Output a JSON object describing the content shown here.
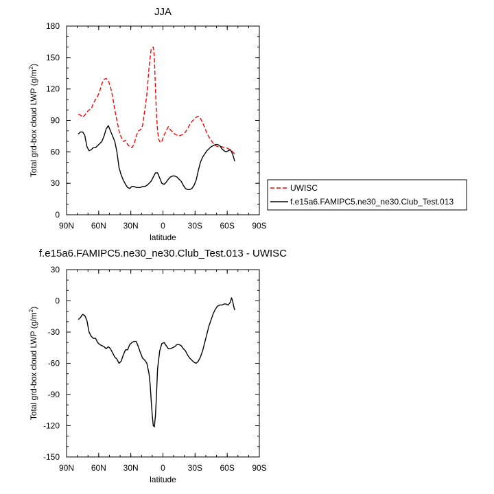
{
  "chart_data": [
    {
      "type": "line",
      "title": "JJA",
      "xlabel": "latitude",
      "ylabel": "Total grd-box cloud LWP (g/m²)",
      "ylabel_main": "Total grd-box cloud LWP (g/m",
      "ylabel_sup": "2",
      "ylabel_tail": ")",
      "xlim": [
        90,
        -90
      ],
      "ylim": [
        0,
        180
      ],
      "xticks": [
        90,
        60,
        30,
        0,
        -30,
        -60,
        -90
      ],
      "xtick_labels": [
        "90N",
        "60N",
        "30N",
        "0",
        "30S",
        "60S",
        "90S"
      ],
      "yticks": [
        0,
        30,
        60,
        90,
        120,
        150,
        180
      ],
      "ytick_labels": [
        "0",
        "30",
        "60",
        "90",
        "120",
        "150",
        "180"
      ],
      "legend_position": "right",
      "series": [
        {
          "name": "UWISC",
          "color": "#ff0000",
          "dash": "dashed",
          "x": [
            79,
            77,
            75,
            73,
            71,
            69,
            67,
            65,
            63,
            61,
            59,
            57,
            55,
            53,
            51,
            49,
            47,
            45,
            43,
            41,
            39,
            37,
            35,
            33,
            31,
            29,
            27,
            25,
            23,
            21,
            19,
            17,
            15,
            13,
            11,
            9,
            8,
            7,
            6,
            5,
            4,
            3,
            2,
            1,
            0,
            -1,
            -3,
            -5,
            -7,
            -9,
            -11,
            -13,
            -15,
            -17,
            -19,
            -21,
            -23,
            -25,
            -27,
            -29,
            -31,
            -33,
            -35,
            -37,
            -39,
            -41,
            -43,
            -45,
            -47,
            -49,
            -51,
            -53,
            -55,
            -57,
            -59,
            -61,
            -63,
            -65,
            -67
          ],
          "values": [
            96,
            95,
            93,
            95,
            98,
            100,
            101,
            106,
            110,
            113,
            118,
            125,
            129,
            130,
            128,
            122,
            113,
            100,
            90,
            80,
            74,
            70,
            71,
            67,
            65,
            64,
            67,
            75,
            80,
            81,
            85,
            100,
            115,
            140,
            158,
            160,
            150,
            120,
            95,
            80,
            72,
            70,
            69,
            70,
            73,
            76,
            80,
            84,
            81,
            79,
            77,
            76,
            75,
            76,
            77,
            79,
            82,
            86,
            89,
            91,
            93,
            94,
            92,
            88,
            83,
            78,
            74,
            71,
            68,
            66,
            65,
            65,
            65,
            64,
            64,
            63,
            62,
            60,
            58
          ]
        },
        {
          "name": "f.e15a6.FAMIPC5.ne30_ne30.Club_Test.013",
          "color": "#000000",
          "dash": "solid",
          "x": [
            79,
            77,
            75,
            73,
            71,
            69,
            67,
            65,
            63,
            61,
            59,
            57,
            55,
            53,
            51,
            49,
            47,
            45,
            43,
            41,
            39,
            37,
            35,
            33,
            31,
            29,
            27,
            25,
            23,
            21,
            19,
            17,
            15,
            13,
            11,
            9,
            7,
            5,
            3,
            1,
            -1,
            -3,
            -5,
            -7,
            -9,
            -11,
            -13,
            -15,
            -17,
            -19,
            -21,
            -23,
            -25,
            -27,
            -29,
            -31,
            -33,
            -35,
            -37,
            -39,
            -41,
            -43,
            -45,
            -47,
            -49,
            -51,
            -53,
            -55,
            -57,
            -59,
            -61,
            -63,
            -65,
            -67
          ],
          "values": [
            77,
            79,
            79,
            76,
            65,
            61,
            62,
            64,
            64,
            66,
            68,
            70,
            75,
            82,
            85,
            80,
            75,
            70,
            60,
            45,
            38,
            33,
            29,
            26,
            25,
            27,
            27,
            26,
            26,
            26,
            27,
            27,
            28,
            30,
            32,
            36,
            40,
            40,
            35,
            30,
            29,
            31,
            34,
            36,
            37,
            37,
            36,
            34,
            32,
            28,
            25,
            24,
            24,
            25,
            28,
            33,
            42,
            50,
            55,
            58,
            61,
            63,
            65,
            66,
            67,
            67,
            66,
            63,
            61,
            60,
            61,
            62,
            58,
            51
          ]
        }
      ]
    },
    {
      "type": "line",
      "title": "f.e15a6.FAMIPC5.ne30_ne30.Club_Test.013 - UWISC",
      "xlabel": "latitude",
      "ylabel": "Total grd-box cloud LWP (g/m²)",
      "ylabel_main": "Total grd-box cloud LWP (g/m",
      "ylabel_sup": "2",
      "ylabel_tail": ")",
      "xlim": [
        90,
        -90
      ],
      "ylim": [
        -150,
        30
      ],
      "xticks": [
        90,
        60,
        30,
        0,
        -30,
        -60,
        -90
      ],
      "xtick_labels": [
        "90N",
        "60N",
        "30N",
        "0",
        "30S",
        "60S",
        "90S"
      ],
      "yticks": [
        -150,
        -120,
        -90,
        -60,
        -30,
        0,
        30
      ],
      "ytick_labels": [
        "-150",
        "-120",
        "-90",
        "-60",
        "-30",
        "0",
        "30"
      ],
      "series": [
        {
          "color": "#000000",
          "dash": "solid",
          "x": [
            79,
            77,
            75,
            73,
            71,
            69,
            67,
            65,
            63,
            61,
            59,
            57,
            55,
            53,
            51,
            49,
            47,
            45,
            43,
            41,
            39,
            37,
            35,
            33,
            31,
            29,
            27,
            25,
            23,
            21,
            19,
            17,
            15,
            13,
            12,
            11,
            10,
            9,
            8,
            7,
            6,
            5,
            3,
            1,
            -1,
            -3,
            -5,
            -7,
            -9,
            -11,
            -13,
            -15,
            -17,
            -19,
            -21,
            -23,
            -25,
            -27,
            -29,
            -31,
            -33,
            -35,
            -37,
            -39,
            -41,
            -43,
            -45,
            -47,
            -49,
            -51,
            -53,
            -55,
            -57,
            -59,
            -61,
            -63,
            -64,
            -65,
            -66,
            -67
          ],
          "values": [
            -18,
            -16,
            -13,
            -14,
            -19,
            -30,
            -34,
            -36,
            -36,
            -40,
            -42,
            -43,
            -44,
            -46,
            -44,
            -46,
            -50,
            -54,
            -56,
            -60,
            -58,
            -52,
            -47,
            -47,
            -42,
            -40,
            -39,
            -39,
            -44,
            -50,
            -55,
            -57,
            -60,
            -70,
            -80,
            -95,
            -110,
            -120,
            -121,
            -110,
            -90,
            -65,
            -48,
            -41,
            -40,
            -43,
            -46,
            -46,
            -45,
            -44,
            -42,
            -42,
            -43,
            -46,
            -48,
            -52,
            -55,
            -57,
            -59,
            -60,
            -58,
            -54,
            -48,
            -40,
            -32,
            -24,
            -18,
            -12,
            -8,
            -5,
            -4,
            -4,
            -3,
            -3,
            -4,
            -1,
            3,
            0,
            -5,
            -9
          ]
        }
      ]
    }
  ]
}
